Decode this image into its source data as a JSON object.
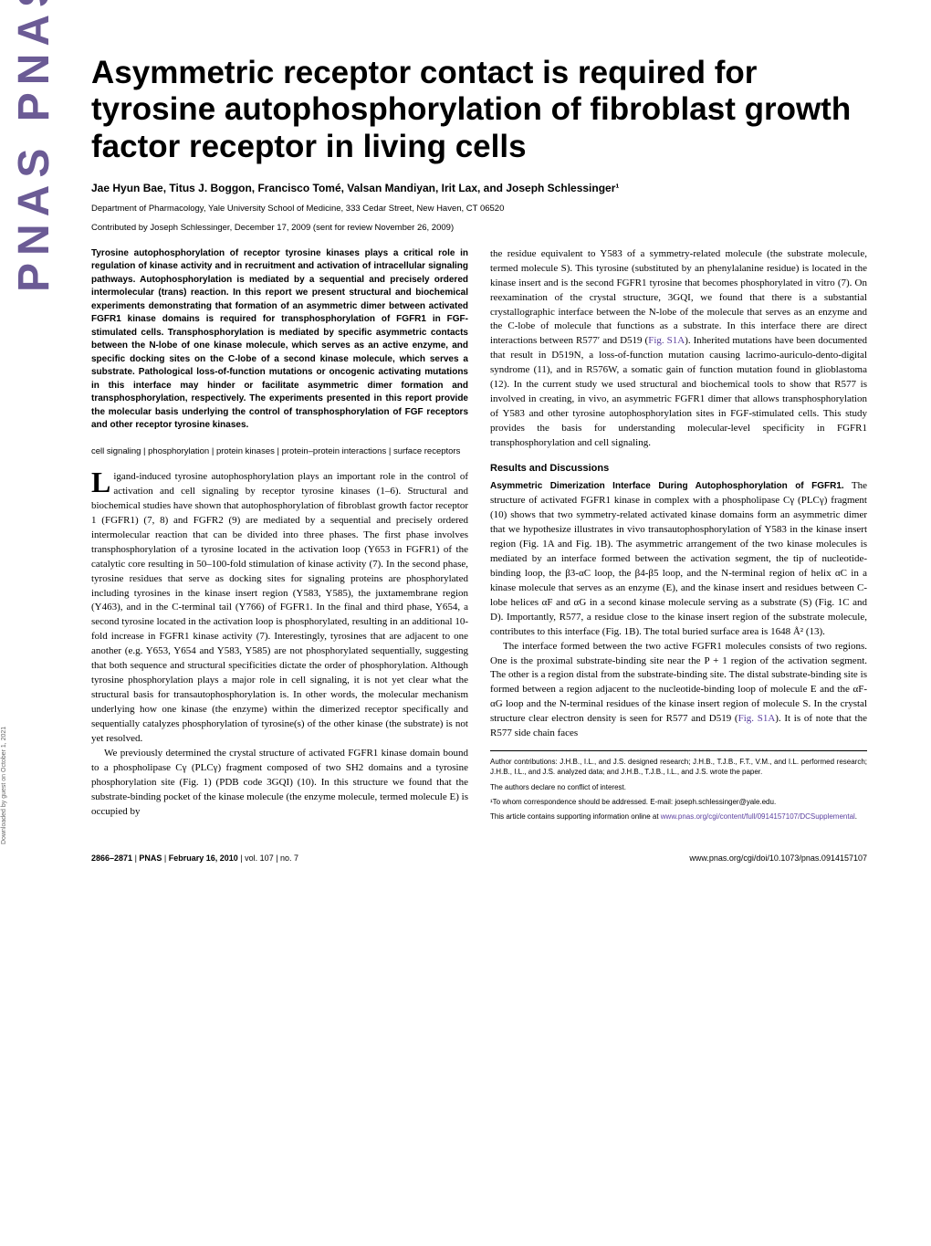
{
  "title": "Asymmetric receptor contact is required for tyrosine autophosphorylation of fibroblast growth factor receptor in living cells",
  "authors": "Jae Hyun Bae, Titus J. Boggon, Francisco Tomé, Valsan Mandiyan, Irit Lax, and Joseph Schlessinger¹",
  "affiliation": "Department of Pharmacology, Yale University School of Medicine, 333 Cedar Street, New Haven, CT 06520",
  "contributed": "Contributed by Joseph Schlessinger, December 17, 2009 (sent for review November 26, 2009)",
  "abstract": "Tyrosine autophosphorylation of receptor tyrosine kinases plays a critical role in regulation of kinase activity and in recruitment and activation of intracellular signaling pathways. Autophosphorylation is mediated by a sequential and precisely ordered intermolecular (trans) reaction. In this report we present structural and biochemical experiments demonstrating that formation of an asymmetric dimer between activated FGFR1 kinase domains is required for transphosphorylation of FGFR1 in FGF-stimulated cells. Transphosphorylation is mediated by specific asymmetric contacts between the N-lobe of one kinase molecule, which serves as an active enzyme, and specific docking sites on the C-lobe of a second kinase molecule, which serves a substrate. Pathological loss-of-function mutations or oncogenic activating mutations in this interface may hinder or facilitate asymmetric dimer formation and transphosphorylation, respectively. The experiments presented in this report provide the molecular basis underlying the control of transphosphorylation of FGF receptors and other receptor tyrosine kinases.",
  "keywords": "cell signaling | phosphorylation | protein kinases | protein–protein interactions | surface receptors",
  "intro1_dropcap": "L",
  "intro1": "igand-induced tyrosine autophosphorylation plays an important role in the control of activation and cell signaling by receptor tyrosine kinases (1–6). Structural and biochemical studies have shown that autophosphorylation of fibroblast growth factor receptor 1 (FGFR1) (7, 8) and FGFR2 (9) are mediated by a sequential and precisely ordered intermolecular reaction that can be divided into three phases. The first phase involves transphosphorylation of a tyrosine located in the activation loop (Y653 in FGFR1) of the catalytic core resulting in 50–100-fold stimulation of kinase activity (7). In the second phase, tyrosine residues that serve as docking sites for signaling proteins are phosphorylated including tyrosines in the kinase insert region (Y583, Y585), the juxtamembrane region (Y463), and in the C-terminal tail (Y766) of FGFR1. In the final and third phase, Y654, a second tyrosine located in the activation loop is phosphorylated, resulting in an additional 10-fold increase in FGFR1 kinase activity (7). Interestingly, tyrosines that are adjacent to one another (e.g. Y653, Y654 and Y583, Y585) are not phosphorylated sequentially, suggesting that both sequence and structural specificities dictate the order of phosphorylation. Although tyrosine phosphorylation plays a major role in cell signaling, it is not yet clear what the structural basis for transautophosphorylation is. In other words, the molecular mechanism underlying how one kinase (the enzyme) within the dimerized receptor specifically and sequentially catalyzes phosphorylation of tyrosine(s) of the other kinase (the substrate) is not yet resolved.",
  "intro2": "We previously determined the crystal structure of activated FGFR1 kinase domain bound to a phospholipase Cγ (PLCγ) fragment composed of two SH2 domains and a tyrosine phosphorylation site (Fig. 1) (PDB code 3GQI) (10). In this structure we found that the substrate-binding pocket of the kinase molecule (the enzyme molecule, termed molecule E) is occupied by",
  "col2_p1a": "the residue equivalent to Y583 of a symmetry-related molecule (the substrate molecule, termed molecule S). This tyrosine (substituted by an phenylalanine residue) is located in the kinase insert and is the second FGFR1 tyrosine that becomes phosphorylated in vitro (7). On reexamination of the crystal structure, 3GQI, we found that there is a substantial crystallographic interface between the N-lobe of the molecule that serves as an enzyme and the C-lobe of molecule that functions as a substrate. In this interface there are direct interactions between R577′ and D519 (",
  "col2_p1_link1": "Fig. S1A",
  "col2_p1b": "). Inherited mutations have been documented that result in D519N, a loss-of-function mutation causing lacrimo-auriculo-dento-digital syndrome (11), and in R576W, a somatic gain of function mutation found in glioblastoma (12). In the current study we used structural and biochemical tools to show that R577 is involved in creating, in vivo, an asymmetric FGFR1 dimer that allows transphosphorylation of Y583 and other tyrosine autophosphorylation sites in FGF-stimulated cells. This study provides the basis for understanding molecular-level specificity in FGFR1 transphosphorylation and cell signaling.",
  "results_heading": "Results and Discussions",
  "results_sub1": "Asymmetric Dimerization Interface During Autophosphorylation of FGFR1.",
  "results_p1": " The structure of activated FGFR1 kinase in complex with a phospholipase Cγ (PLCγ) fragment (10) shows that two symmetry-related activated kinase domains form an asymmetric dimer that we hypothesize illustrates in vivo transautophosphorylation of Y583 in the kinase insert region (Fig. 1A and Fig. 1B). The asymmetric arrangement of the two kinase molecules is mediated by an interface formed between the activation segment, the tip of nucleotide-binding loop, the β3-αC loop, the β4-β5 loop, and the N-terminal region of helix αC in a kinase molecule that serves as an enzyme (E), and the kinase insert and residues between C-lobe helices αF and αG in a second kinase molecule serving as a substrate (S) (Fig. 1C and D). Importantly, R577, a residue close to the kinase insert region of the substrate molecule, contributes to this interface (Fig. 1B). The total buried surface area is 1648 Å² (13).",
  "results_p2a": "The interface formed between the two active FGFR1 molecules consists of two regions. One is the proximal substrate-binding site near the P + 1 region of the activation segment. The other is a region distal from the substrate-binding site. The distal substrate-binding site is formed between a region adjacent to the nucleotide-binding loop of molecule E and the αF-αG loop and the N-terminal residues of the kinase insert region of molecule S. In the crystal structure clear electron density is seen for R577 and D519 (",
  "results_p2_link": "Fig. S1A",
  "results_p2b": "). It is of note that the R577 side chain faces",
  "footnote_author": "Author contributions: J.H.B., I.L., and J.S. designed research; J.H.B., T.J.B., F.T., V.M., and I.L. performed research; J.H.B., I.L., and J.S. analyzed data; and J.H.B., T.J.B., I.L., and J.S. wrote the paper.",
  "footnote_conflict": "The authors declare no conflict of interest.",
  "footnote_corr": "¹To whom correspondence should be addressed. E-mail: joseph.schlessinger@yale.edu.",
  "footnote_supp_a": "This article contains supporting information online at ",
  "footnote_supp_link": "www.pnas.org/cgi/content/full/0914157107/DCSupplemental",
  "footnote_supp_b": ".",
  "footer_left_pages": "2866–2871",
  "footer_left_sep1": " | ",
  "footer_left_pnas": "PNAS",
  "footer_left_sep2": " | ",
  "footer_left_date": "February 16, 2010",
  "footer_left_sep3": " | ",
  "footer_left_vol": "vol. 107",
  "footer_left_sep4": " | ",
  "footer_left_no": "no. 7",
  "footer_right": "www.pnas.org/cgi/doi/10.1073/pnas.0914157107",
  "side_logo": "PNAS   PNAS   PNAS",
  "side_note": "Downloaded by guest on October 1, 2021",
  "colors": {
    "link": "#5b3f9e",
    "logo": "#6b5b95",
    "text": "#000000",
    "background": "#ffffff"
  }
}
